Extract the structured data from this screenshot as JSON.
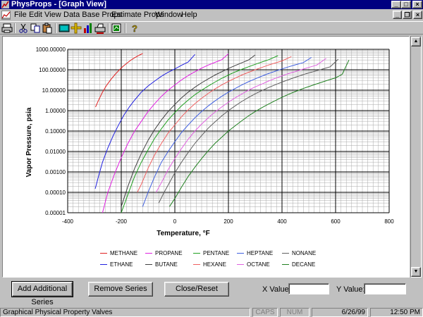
{
  "window": {
    "title": "PhysProps - [Graph View]"
  },
  "menu": {
    "items": [
      "File",
      "Edit",
      "View",
      "Data Base Props",
      "Estimate Props",
      "Window",
      "Help"
    ]
  },
  "chart_data": {
    "type": "line",
    "title": "",
    "xlabel": "Temperature, °F",
    "ylabel": "Vapor Pressure, psia",
    "xlim": [
      -400,
      800
    ],
    "ylim": [
      1e-05,
      1000
    ],
    "yscale": "log",
    "x_ticks": [
      "-400",
      "-200",
      "0",
      "200",
      "400",
      "600",
      "800"
    ],
    "y_ticks": [
      "0.00001",
      "0.00010",
      "0.00100",
      "0.01000",
      "0.10000",
      "1.00000",
      "10.00000",
      "100.00000",
      "1000.00000"
    ],
    "grid": true,
    "legend_position": "bottom",
    "series": [
      {
        "name": "METHANE",
        "color": "#e02020",
        "x": [
          -296,
          -285,
          -270,
          -255,
          -240,
          -225,
          -210,
          -195,
          -180,
          -165,
          -150,
          -135,
          -120
        ],
        "y": [
          1.5,
          3.2,
          8,
          17,
          32,
          55,
          90,
          140,
          205,
          290,
          390,
          500,
          620
        ]
      },
      {
        "name": "ETHANE",
        "color": "#2020e0",
        "x": [
          -297,
          -285,
          -270,
          -250,
          -230,
          -210,
          -190,
          -170,
          -150,
          -125,
          -100,
          -75,
          -50,
          -25,
          0,
          25,
          50,
          75
        ],
        "y": [
          0.00015,
          0.0006,
          0.003,
          0.015,
          0.06,
          0.2,
          0.6,
          1.5,
          3.3,
          8,
          16,
          28,
          48,
          75,
          110,
          165,
          240,
          560
        ]
      },
      {
        "name": "PROPANE",
        "color": "#e020e0",
        "x": [
          -270,
          -250,
          -225,
          -200,
          -175,
          -150,
          -125,
          -100,
          -75,
          -50,
          -25,
          0,
          25,
          50,
          75,
          100,
          125,
          150,
          175,
          200
        ],
        "y": [
          1e-05,
          0.0001,
          0.0008,
          0.005,
          0.025,
          0.1,
          0.3,
          0.9,
          2.2,
          5,
          10,
          18,
          32,
          52,
          80,
          120,
          170,
          230,
          310,
          600
        ]
      },
      {
        "name": "BUTANE",
        "color": "#404040",
        "x": [
          -200,
          -175,
          -150,
          -125,
          -100,
          -75,
          -50,
          -25,
          0,
          25,
          50,
          75,
          100,
          125,
          150,
          175,
          200,
          225,
          250,
          275,
          300
        ],
        "y": [
          2e-05,
          0.0002,
          0.0015,
          0.008,
          0.035,
          0.12,
          0.35,
          0.9,
          2,
          4.2,
          8,
          14,
          23,
          36,
          55,
          80,
          115,
          160,
          220,
          300,
          530
        ]
      },
      {
        "name": "PENTANE",
        "color": "#20a020",
        "x": [
          -200,
          -175,
          -150,
          -125,
          -100,
          -75,
          -50,
          -25,
          0,
          25,
          50,
          75,
          100,
          125,
          150,
          175,
          200,
          225,
          250,
          275,
          300,
          325,
          350,
          385
        ],
        "y": [
          1e-05,
          8e-05,
          0.0006,
          0.003,
          0.012,
          0.045,
          0.13,
          0.35,
          0.8,
          1.7,
          3.3,
          6,
          10,
          16,
          25,
          38,
          55,
          78,
          105,
          140,
          185,
          240,
          310,
          490
        ]
      },
      {
        "name": "HEXANE",
        "color": "#f06060",
        "x": [
          -140,
          -125,
          -100,
          -75,
          -50,
          -25,
          0,
          25,
          50,
          75,
          100,
          125,
          150,
          175,
          200,
          225,
          250,
          275,
          300,
          325,
          350,
          375,
          400,
          435
        ],
        "y": [
          0.0001,
          0.00025,
          0.0015,
          0.007,
          0.025,
          0.08,
          0.2,
          0.5,
          1.1,
          2.2,
          4,
          7,
          11.5,
          18,
          27,
          39,
          55,
          75,
          100,
          130,
          170,
          215,
          270,
          440
        ]
      },
      {
        "name": "HEPTANE",
        "color": "#4060e0",
        "x": [
          -120,
          -100,
          -75,
          -50,
          -25,
          0,
          25,
          50,
          75,
          100,
          125,
          150,
          175,
          200,
          225,
          250,
          275,
          300,
          325,
          350,
          375,
          400,
          425,
          450,
          480,
          510
        ],
        "y": [
          2e-05,
          0.0001,
          0.0006,
          0.003,
          0.01,
          0.03,
          0.085,
          0.2,
          0.45,
          0.9,
          1.7,
          3,
          5,
          8,
          12,
          18,
          26,
          36,
          49,
          65,
          85,
          110,
          140,
          175,
          225,
          400
        ]
      },
      {
        "name": "OCTANE",
        "color": "#e060e0",
        "x": [
          -70,
          -50,
          -25,
          0,
          25,
          50,
          75,
          100,
          125,
          150,
          175,
          200,
          225,
          250,
          275,
          300,
          325,
          350,
          375,
          400,
          425,
          450,
          475,
          500,
          530,
          565
        ],
        "y": [
          0.0001,
          0.0003,
          0.0013,
          0.0045,
          0.014,
          0.04,
          0.1,
          0.22,
          0.45,
          0.85,
          1.5,
          2.6,
          4.2,
          6.5,
          10,
          14.5,
          20,
          28,
          38,
          50,
          65,
          82,
          104,
          130,
          170,
          360
        ]
      },
      {
        "name": "NONANE",
        "color": "#606060",
        "x": [
          -60,
          -40,
          -20,
          0,
          25,
          50,
          75,
          100,
          125,
          150,
          175,
          200,
          225,
          250,
          275,
          300,
          325,
          350,
          375,
          400,
          425,
          450,
          475,
          500,
          525,
          550,
          580,
          610
        ],
        "y": [
          3e-05,
          0.0001,
          0.0003,
          0.0009,
          0.003,
          0.009,
          0.025,
          0.06,
          0.14,
          0.28,
          0.55,
          1,
          1.7,
          2.8,
          4.4,
          6.6,
          9.5,
          13.5,
          18.5,
          25,
          33,
          43,
          55,
          70,
          87,
          107,
          140,
          330
        ]
      },
      {
        "name": "DECANE",
        "color": "#208020",
        "x": [
          -20,
          0,
          25,
          50,
          75,
          100,
          125,
          150,
          175,
          200,
          225,
          250,
          275,
          300,
          325,
          350,
          375,
          400,
          425,
          450,
          475,
          500,
          525,
          550,
          575,
          600,
          625,
          650
        ],
        "y": [
          2e-05,
          5e-05,
          0.00018,
          0.0006,
          0.0017,
          0.0045,
          0.011,
          0.025,
          0.05,
          0.1,
          0.18,
          0.32,
          0.55,
          0.9,
          1.4,
          2.1,
          3.1,
          4.5,
          6.3,
          8.6,
          11.5,
          15,
          19.5,
          25,
          32,
          40,
          60,
          300
        ]
      }
    ]
  },
  "controls": {
    "add_series": "Add Additional Series",
    "remove_series": "Remove Series",
    "close_reset": "Close/Reset",
    "x_value_label": "X Value:",
    "y_value_label": "Y Value:",
    "x_value": "",
    "y_value": ""
  },
  "status": {
    "message": "Graphical Physical Property Valves",
    "caps": "CAPS",
    "num": "NUM",
    "date": "6/26/99",
    "time": "12:50 PM"
  }
}
